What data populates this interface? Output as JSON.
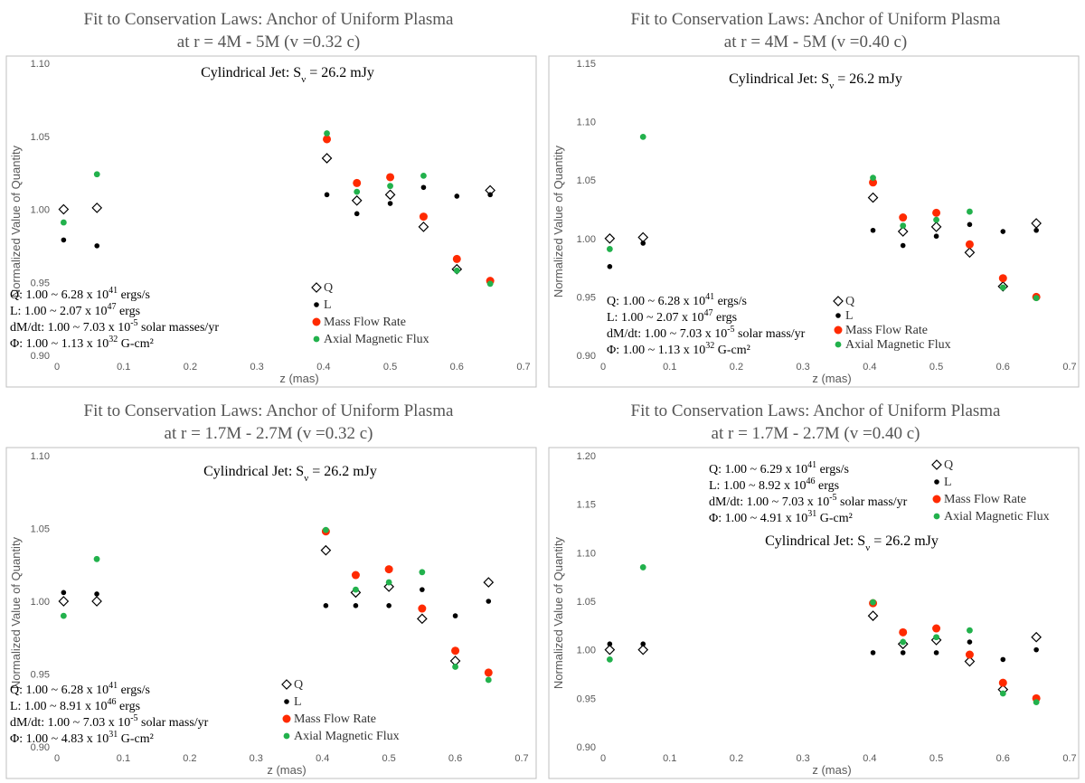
{
  "chart_data": [
    {
      "type": "scatter",
      "title": "Fit to Conservation Laws: Anchor of Uniform Plasma",
      "subtitle": "at r = 4M - 5M (v =0.32 c)",
      "annotation_jet": "Cylindrical Jet: Sν = 26.2 mJy",
      "jet_text": {
        "main": "Cylindrical Jet: S",
        "sub": "ν",
        "rest": " = 26.2 mJy"
      },
      "xlabel": "z (mas)",
      "ylabel": "Normalized Value of Quantity",
      "xlim": [
        0,
        0.7
      ],
      "ylim": [
        0.9,
        1.1
      ],
      "xticks": [
        0,
        0.1,
        0.2,
        0.3,
        0.4,
        0.5,
        0.6,
        0.7
      ],
      "yticks": [
        0.9,
        0.95,
        1.0,
        1.05,
        1.1
      ],
      "xtick_labels": [
        "0",
        "0.1",
        "0.2",
        "0.3",
        "0.4",
        "0.5",
        "0.6",
        "0.7"
      ],
      "ytick_labels": [
        "0.90",
        "0.95",
        "1.00",
        "1.05",
        "1.10"
      ],
      "annotations": [
        {
          "main": "Q: 1.00 ~ 6.28 x 10",
          "sup": "41",
          "rest": " ergs/s"
        },
        {
          "main": "L: 1.00 ~ 2.07 x 10",
          "sup": "47",
          "rest": " ergs"
        },
        {
          "main": "dM/dt: 1.00 ~ 7.03 x 10",
          "sup": "-5",
          "rest": " solar masses/yr"
        },
        {
          "main": "Φ: 1.00 ~ 1.13 x 10",
          "sup": "32",
          "rest": " G-cm²"
        }
      ],
      "legend": [
        "Q",
        "L",
        "Mass Flow Rate",
        "Axial Magnetic Flux"
      ],
      "legend_placement": "bottom-center",
      "series": [
        {
          "name": "Q",
          "marker": "diamond-open",
          "color": "#000000",
          "x": [
            0.01,
            0.06,
            0.405,
            0.45,
            0.5,
            0.55,
            0.6,
            0.65
          ],
          "y": [
            1.0,
            1.001,
            1.035,
            1.006,
            1.01,
            0.988,
            0.959,
            1.013
          ]
        },
        {
          "name": "L",
          "marker": "dot-small",
          "color": "#000000",
          "x": [
            0.01,
            0.06,
            0.405,
            0.45,
            0.5,
            0.55,
            0.6,
            0.65
          ],
          "y": [
            0.979,
            0.975,
            1.01,
            0.997,
            1.004,
            1.015,
            1.009,
            1.01
          ]
        },
        {
          "name": "Mass Flow Rate",
          "marker": "dot-large",
          "color": "#ff2a00",
          "x": [
            0.405,
            0.45,
            0.5,
            0.55,
            0.6,
            0.65
          ],
          "y": [
            1.048,
            1.018,
            1.022,
            0.995,
            0.966,
            0.951
          ]
        },
        {
          "name": "Axial Magnetic Flux",
          "marker": "dot-medium",
          "color": "#22b14c",
          "x": [
            0.01,
            0.06,
            0.405,
            0.45,
            0.5,
            0.55,
            0.6,
            0.65
          ],
          "y": [
            0.991,
            1.024,
            1.052,
            1.012,
            1.016,
            1.023,
            0.958,
            0.949
          ]
        }
      ]
    },
    {
      "type": "scatter",
      "title": "Fit to Conservation Laws: Anchor of Uniform Plasma",
      "subtitle": "at r = 4M - 5M (v =0.40 c)",
      "annotation_jet": "Cylindrical Jet: Sν = 26.2 mJy",
      "jet_text": {
        "main": "Cylindrical Jet: S",
        "sub": "ν",
        "rest": " = 26.2 mJy"
      },
      "xlabel": "z (mas)",
      "ylabel": "Normalized Value of Quantity",
      "xlim": [
        0,
        0.7
      ],
      "ylim": [
        0.9,
        1.15
      ],
      "xticks": [
        0,
        0.1,
        0.2,
        0.3,
        0.4,
        0.5,
        0.6,
        0.7
      ],
      "yticks": [
        0.9,
        0.95,
        1.0,
        1.05,
        1.1,
        1.15
      ],
      "xtick_labels": [
        "0",
        "0.1",
        "0.2",
        "0.3",
        "0.4",
        "0.5",
        "0.6",
        "0.7"
      ],
      "ytick_labels": [
        "0.90",
        "0.95",
        "1.00",
        "1.05",
        "1.10",
        "1.15"
      ],
      "annotations": [
        {
          "main": "Q: 1.00 ~ 6.28 x 10",
          "sup": "41",
          "rest": " ergs/s"
        },
        {
          "main": "L: 1.00 ~ 2.07 x 10",
          "sup": "47",
          "rest": " ergs"
        },
        {
          "main": "dM/dt: 1.00 ~ 7.03 x 10",
          "sup": "-5",
          "rest": " solar mass/yr"
        },
        {
          "main": "Φ: 1.00 ~ 1.13 x 10",
          "sup": "32",
          "rest": " G-cm²"
        }
      ],
      "legend": [
        "Q",
        "L",
        "Mass Flow Rate",
        "Axial Magnetic Flux"
      ],
      "legend_placement": "bottom-center",
      "series": [
        {
          "name": "Q",
          "marker": "diamond-open",
          "color": "#000000",
          "x": [
            0.01,
            0.06,
            0.405,
            0.45,
            0.5,
            0.55,
            0.6,
            0.65
          ],
          "y": [
            1.0,
            1.001,
            1.035,
            1.006,
            1.01,
            0.988,
            0.959,
            1.013
          ]
        },
        {
          "name": "L",
          "marker": "dot-small",
          "color": "#000000",
          "x": [
            0.01,
            0.06,
            0.405,
            0.45,
            0.5,
            0.55,
            0.6,
            0.65
          ],
          "y": [
            0.976,
            0.996,
            1.007,
            0.994,
            1.002,
            1.012,
            1.006,
            1.007
          ]
        },
        {
          "name": "Mass Flow Rate",
          "marker": "dot-large",
          "color": "#ff2a00",
          "x": [
            0.405,
            0.45,
            0.5,
            0.55,
            0.6,
            0.65
          ],
          "y": [
            1.048,
            1.018,
            1.022,
            0.995,
            0.966,
            0.95
          ]
        },
        {
          "name": "Axial Magnetic Flux",
          "marker": "dot-medium",
          "color": "#22b14c",
          "x": [
            0.01,
            0.06,
            0.405,
            0.45,
            0.5,
            0.55,
            0.6,
            0.65
          ],
          "y": [
            0.991,
            1.087,
            1.052,
            1.011,
            1.016,
            1.023,
            0.958,
            0.949
          ]
        }
      ]
    },
    {
      "type": "scatter",
      "title": "Fit to Conservation Laws: Anchor of Uniform Plasma",
      "subtitle": "at r = 1.7M - 2.7M (v =0.32 c)",
      "annotation_jet": "Cylindrical Jet: Sν = 26.2 mJy",
      "jet_text": {
        "main": "Cylindrical Jet: S",
        "sub": "ν",
        "rest": " = 26.2 mJy"
      },
      "xlabel": "z (mas)",
      "ylabel": "Normalized Value of Quantity",
      "xlim": [
        0,
        0.7
      ],
      "ylim": [
        0.9,
        1.1
      ],
      "xticks": [
        0,
        0.1,
        0.2,
        0.3,
        0.4,
        0.5,
        0.6,
        0.7
      ],
      "yticks": [
        0.9,
        0.95,
        1.0,
        1.05,
        1.1
      ],
      "xtick_labels": [
        "0",
        "0.1",
        "0.2",
        "0.3",
        "0.4",
        "0.5",
        "0.6",
        "0.7"
      ],
      "ytick_labels": [
        "0.90",
        "0.95",
        "1.00",
        "1.05",
        "1.10"
      ],
      "annotations": [
        {
          "main": "Q: 1.00 ~ 6.28 x 10",
          "sup": "41",
          "rest": " ergs/s"
        },
        {
          "main": "L: 1.00 ~ 8.91 x 10",
          "sup": "46",
          "rest": " ergs"
        },
        {
          "main": "dM/dt: 1.00 ~ 7.03 x 10",
          "sup": "-5",
          "rest": " solar mass/yr"
        },
        {
          "main": "Φ: 1.00 ~ 4.83 x 10",
          "sup": "31",
          "rest": " G-cm²"
        }
      ],
      "legend": [
        "Q",
        "L",
        "Mass Flow  Rate",
        "Axial Magnetic Flux"
      ],
      "legend_placement": "bottom-center",
      "series": [
        {
          "name": "Q",
          "marker": "diamond-open",
          "color": "#000000",
          "x": [
            0.01,
            0.06,
            0.405,
            0.45,
            0.5,
            0.55,
            0.6,
            0.65
          ],
          "y": [
            1.0,
            1.0,
            1.035,
            1.006,
            1.01,
            0.988,
            0.959,
            1.013
          ]
        },
        {
          "name": "L",
          "marker": "dot-small",
          "color": "#000000",
          "x": [
            0.01,
            0.06,
            0.405,
            0.45,
            0.5,
            0.55,
            0.6,
            0.65
          ],
          "y": [
            1.006,
            1.005,
            0.997,
            0.997,
            0.997,
            1.008,
            0.99,
            1.0
          ]
        },
        {
          "name": "Mass Flow  Rate",
          "marker": "dot-large",
          "color": "#ff2a00",
          "x": [
            0.405,
            0.45,
            0.5,
            0.55,
            0.6,
            0.65
          ],
          "y": [
            1.048,
            1.018,
            1.022,
            0.995,
            0.966,
            0.951
          ]
        },
        {
          "name": "Axial Magnetic Flux",
          "marker": "dot-medium",
          "color": "#22b14c",
          "x": [
            0.01,
            0.06,
            0.405,
            0.45,
            0.5,
            0.55,
            0.6,
            0.65
          ],
          "y": [
            0.99,
            1.029,
            1.049,
            1.008,
            1.013,
            1.02,
            0.955,
            0.946
          ]
        }
      ]
    },
    {
      "type": "scatter",
      "title": "Fit to Conservation Laws: Anchor of Uniform Plasma",
      "subtitle": "at r = 1.7M - 2.7M (v =0.40 c)",
      "annotation_jet": "Cylindrical Jet: Sν = 26.2 mJy",
      "jet_text": {
        "main": "Cylindrical Jet: S",
        "sub": "ν",
        "rest": " = 26.2 mJy"
      },
      "xlabel": "z (mas)",
      "ylabel": "Normalized Value of Quantity",
      "xlim": [
        0,
        0.7
      ],
      "ylim": [
        0.9,
        1.2
      ],
      "xticks": [
        0,
        0.1,
        0.2,
        0.3,
        0.4,
        0.5,
        0.6,
        0.7
      ],
      "yticks": [
        0.9,
        0.95,
        1.0,
        1.05,
        1.1,
        1.15,
        1.2
      ],
      "xtick_labels": [
        "0",
        "0.1",
        "0.2",
        "0.3",
        "0.4",
        "0.5",
        "0.6",
        "0.7"
      ],
      "ytick_labels": [
        "0.90",
        "0.95",
        "1.00",
        "1.05",
        "1.10",
        "1.15",
        "1.20"
      ],
      "annotations": [
        {
          "main": "Q: 1.00 ~ 6.29 x 10",
          "sup": "41",
          "rest": " ergs/s"
        },
        {
          "main": "L: 1.00 ~ 8.92 x 10",
          "sup": "46",
          "rest": " ergs"
        },
        {
          "main": "dM/dt: 1.00 ~ 7.03 x 10",
          "sup": "-5",
          "rest": " solar mass/yr"
        },
        {
          "main": "Φ: 1.00 ~ 4.91 x 10",
          "sup": "31",
          "rest": " G-cm²"
        }
      ],
      "legend": [
        "Q",
        "L",
        "Mass Flow Rate",
        "Axial Magnetic Flux"
      ],
      "legend_placement": "top-right",
      "series": [
        {
          "name": "Q",
          "marker": "diamond-open",
          "color": "#000000",
          "x": [
            0.01,
            0.06,
            0.405,
            0.45,
            0.5,
            0.55,
            0.6,
            0.65
          ],
          "y": [
            1.0,
            1.0,
            1.035,
            1.006,
            1.01,
            0.988,
            0.959,
            1.013
          ]
        },
        {
          "name": "L",
          "marker": "dot-small",
          "color": "#000000",
          "x": [
            0.01,
            0.06,
            0.405,
            0.45,
            0.5,
            0.55,
            0.6,
            0.65
          ],
          "y": [
            1.006,
            1.006,
            0.997,
            0.997,
            0.997,
            1.008,
            0.99,
            1.0
          ]
        },
        {
          "name": "Mass Flow Rate",
          "marker": "dot-large",
          "color": "#ff2a00",
          "x": [
            0.405,
            0.45,
            0.5,
            0.55,
            0.6,
            0.65
          ],
          "y": [
            1.048,
            1.018,
            1.022,
            0.995,
            0.966,
            0.95
          ]
        },
        {
          "name": "Axial Magnetic Flux",
          "marker": "dot-medium",
          "color": "#22b14c",
          "x": [
            0.01,
            0.06,
            0.405,
            0.45,
            0.5,
            0.55,
            0.6,
            0.65
          ],
          "y": [
            0.99,
            1.085,
            1.049,
            1.008,
            1.013,
            1.02,
            0.955,
            0.946
          ]
        }
      ]
    }
  ]
}
